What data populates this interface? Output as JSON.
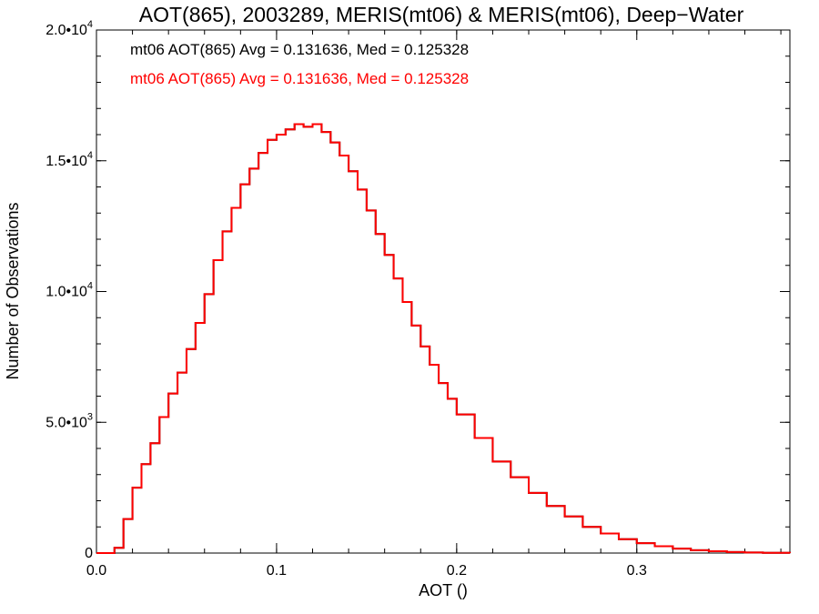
{
  "chart_data": {
    "type": "line",
    "step": true,
    "title": "AOT(865), 2003289, MERIS(mt06) & MERIS(mt06), Deep−Water",
    "xlabel": "AOT ()",
    "ylabel": "Number of Observations",
    "xlim": [
      0,
      0.385
    ],
    "ylim": [
      0,
      20000
    ],
    "x_ticks": [
      {
        "value": 0.0,
        "label": "0.0"
      },
      {
        "value": 0.1,
        "label": "0.1"
      },
      {
        "value": 0.2,
        "label": "0.2"
      },
      {
        "value": 0.3,
        "label": "0.3"
      }
    ],
    "y_ticks": [
      {
        "value": 0,
        "mant": "0",
        "exp": ""
      },
      {
        "value": 5000,
        "mant": "5.0•10",
        "exp": "3"
      },
      {
        "value": 10000,
        "mant": "1.0•10",
        "exp": "4"
      },
      {
        "value": 15000,
        "mant": "1.5•10",
        "exp": "4"
      },
      {
        "value": 20000,
        "mant": "2.0•10",
        "exp": "4"
      }
    ],
    "x_minor_step": 0.02,
    "y_minor_step": 1000,
    "grid": false,
    "series": [
      {
        "color": "#000000",
        "annotation": "mt06 AOT(865) Avg = 0.131636, Med = 0.125328",
        "x": [
          0.0,
          0.01,
          0.015,
          0.02,
          0.025,
          0.03,
          0.035,
          0.04,
          0.045,
          0.05,
          0.055,
          0.06,
          0.065,
          0.07,
          0.075,
          0.08,
          0.085,
          0.09,
          0.095,
          0.1,
          0.105,
          0.11,
          0.115,
          0.12,
          0.125,
          0.13,
          0.135,
          0.14,
          0.145,
          0.15,
          0.155,
          0.16,
          0.165,
          0.17,
          0.175,
          0.18,
          0.185,
          0.19,
          0.195,
          0.2,
          0.21,
          0.22,
          0.23,
          0.24,
          0.25,
          0.26,
          0.27,
          0.28,
          0.29,
          0.3,
          0.31,
          0.32,
          0.33,
          0.34,
          0.35,
          0.36,
          0.37,
          0.385
        ],
        "y": [
          0,
          200,
          1300,
          2500,
          3400,
          4200,
          5200,
          6100,
          6900,
          7800,
          8800,
          9900,
          11200,
          12300,
          13200,
          14100,
          14700,
          15300,
          15800,
          16000,
          16200,
          16400,
          16300,
          16400,
          16100,
          15700,
          15200,
          14600,
          13900,
          13100,
          12200,
          11400,
          10500,
          9600,
          8700,
          7900,
          7200,
          6500,
          5900,
          5300,
          4400,
          3500,
          2900,
          2300,
          1800,
          1400,
          1000,
          750,
          530,
          380,
          260,
          170,
          110,
          70,
          40,
          20,
          10,
          0
        ]
      },
      {
        "color": "#ff0000",
        "annotation": "mt06 AOT(865) Avg = 0.131636, Med = 0.125328",
        "x": [
          0.0,
          0.01,
          0.015,
          0.02,
          0.025,
          0.03,
          0.035,
          0.04,
          0.045,
          0.05,
          0.055,
          0.06,
          0.065,
          0.07,
          0.075,
          0.08,
          0.085,
          0.09,
          0.095,
          0.1,
          0.105,
          0.11,
          0.115,
          0.12,
          0.125,
          0.13,
          0.135,
          0.14,
          0.145,
          0.15,
          0.155,
          0.16,
          0.165,
          0.17,
          0.175,
          0.18,
          0.185,
          0.19,
          0.195,
          0.2,
          0.21,
          0.22,
          0.23,
          0.24,
          0.25,
          0.26,
          0.27,
          0.28,
          0.29,
          0.3,
          0.31,
          0.32,
          0.33,
          0.34,
          0.35,
          0.36,
          0.37,
          0.385
        ],
        "y": [
          0,
          200,
          1300,
          2500,
          3400,
          4200,
          5200,
          6100,
          6900,
          7800,
          8800,
          9900,
          11200,
          12300,
          13200,
          14100,
          14700,
          15300,
          15800,
          16000,
          16200,
          16400,
          16300,
          16400,
          16100,
          15700,
          15200,
          14600,
          13900,
          13100,
          12200,
          11400,
          10500,
          9600,
          8700,
          7900,
          7200,
          6500,
          5900,
          5300,
          4400,
          3500,
          2900,
          2300,
          1800,
          1400,
          1000,
          750,
          530,
          380,
          260,
          170,
          110,
          70,
          40,
          20,
          10,
          0
        ]
      }
    ]
  }
}
